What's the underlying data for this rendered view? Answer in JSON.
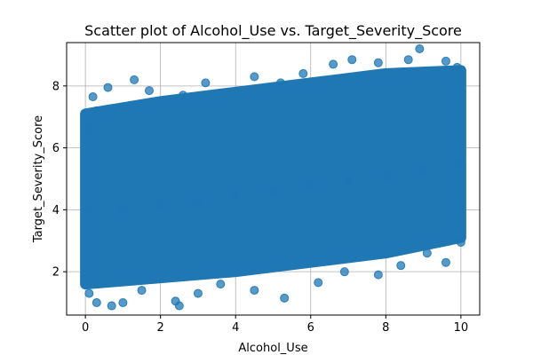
{
  "chart_data": {
    "type": "scatter",
    "title": "Scatter plot of Alcohol_Use vs. Target_Severity_Score",
    "xlabel": "Alcohol_Use",
    "ylabel": "Target_Severity_Score",
    "xlim": [
      -0.5,
      10.5
    ],
    "ylim": [
      0.6,
      9.4
    ],
    "x_ticks": [
      0,
      2,
      4,
      6,
      8,
      10
    ],
    "y_ticks": [
      2,
      4,
      6,
      8
    ],
    "grid": true,
    "point_color": "#1f77b4",
    "point_alpha": 0.75,
    "points": [
      {
        "x": 0.12,
        "y": 6.6
      },
      {
        "x": 0.3,
        "y": 7.2
      },
      {
        "x": 0.2,
        "y": 7.65
      },
      {
        "x": 0.6,
        "y": 7.95
      },
      {
        "x": 1.3,
        "y": 8.2
      },
      {
        "x": 1.7,
        "y": 7.85
      },
      {
        "x": 2.6,
        "y": 7.7
      },
      {
        "x": 3.2,
        "y": 8.1
      },
      {
        "x": 4.5,
        "y": 8.3
      },
      {
        "x": 5.2,
        "y": 8.1
      },
      {
        "x": 5.8,
        "y": 8.4
      },
      {
        "x": 6.6,
        "y": 8.7
      },
      {
        "x": 7.1,
        "y": 8.85
      },
      {
        "x": 7.8,
        "y": 8.75
      },
      {
        "x": 8.6,
        "y": 8.85
      },
      {
        "x": 8.9,
        "y": 9.2
      },
      {
        "x": 9.6,
        "y": 8.8
      },
      {
        "x": 9.9,
        "y": 8.6
      },
      {
        "x": 0.1,
        "y": 1.3
      },
      {
        "x": 0.3,
        "y": 1.0
      },
      {
        "x": 0.7,
        "y": 0.9
      },
      {
        "x": 1.0,
        "y": 1.0
      },
      {
        "x": 1.5,
        "y": 1.4
      },
      {
        "x": 2.4,
        "y": 1.05
      },
      {
        "x": 2.5,
        "y": 0.9
      },
      {
        "x": 3.0,
        "y": 1.3
      },
      {
        "x": 3.6,
        "y": 1.6
      },
      {
        "x": 4.5,
        "y": 1.4
      },
      {
        "x": 5.3,
        "y": 1.15
      },
      {
        "x": 6.2,
        "y": 1.65
      },
      {
        "x": 6.9,
        "y": 2.0
      },
      {
        "x": 7.8,
        "y": 1.9
      },
      {
        "x": 8.4,
        "y": 2.2
      },
      {
        "x": 9.1,
        "y": 2.6
      },
      {
        "x": 9.6,
        "y": 2.3
      },
      {
        "x": 10.0,
        "y": 2.95
      },
      {
        "x": 0.05,
        "y": 4.0
      },
      {
        "x": 1.0,
        "y": 4.0
      },
      {
        "x": 2.0,
        "y": 4.2
      },
      {
        "x": 3.0,
        "y": 4.3
      },
      {
        "x": 4.0,
        "y": 4.5
      },
      {
        "x": 5.0,
        "y": 4.6
      },
      {
        "x": 6.0,
        "y": 4.8
      },
      {
        "x": 7.0,
        "y": 5.0
      },
      {
        "x": 8.0,
        "y": 5.1
      },
      {
        "x": 9.0,
        "y": 5.3
      },
      {
        "x": 10.0,
        "y": 5.5
      }
    ]
  }
}
